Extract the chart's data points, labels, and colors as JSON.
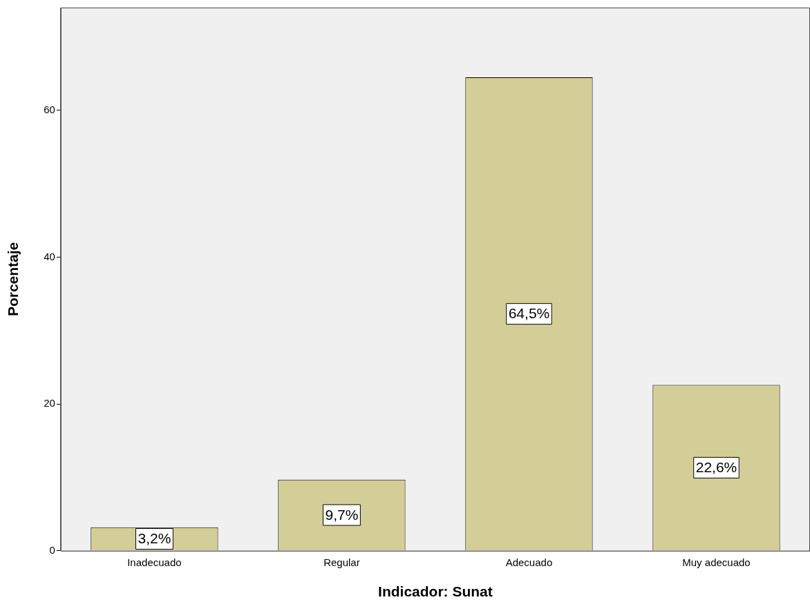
{
  "chart_data": {
    "type": "bar",
    "xlabel": "Indicador: Sunat",
    "ylabel": "Porcentaje",
    "categories": [
      "Inadecuado",
      "Regular",
      "Adecuado",
      "Muy adecuado"
    ],
    "values": [
      3.2,
      9.7,
      64.5,
      22.6
    ],
    "value_labels": [
      "3,2%",
      "9,7%",
      "64,5%",
      "22,6%"
    ],
    "color": "#d3ce97",
    "ylim": [
      0,
      74
    ],
    "yticks": [
      0,
      20,
      40,
      60
    ],
    "grid": false,
    "legend": false
  }
}
